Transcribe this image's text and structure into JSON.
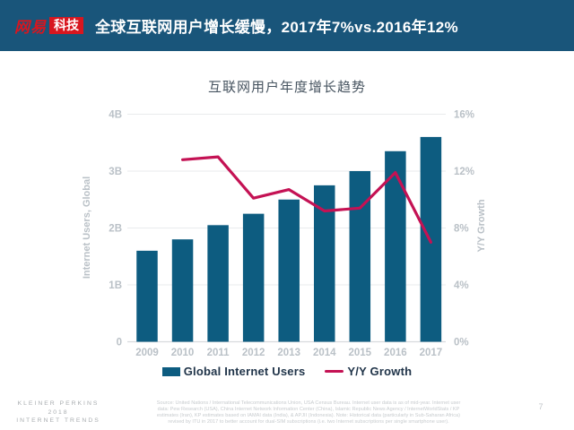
{
  "colors": {
    "header_bg": "#19557a",
    "logo_red": "#d8161f",
    "bar": "#0d5c80",
    "line": "#c41254",
    "grid": "#e9ebed",
    "axis": "#d7dadd",
    "tick_text": "#bac1c7"
  },
  "header": {
    "logo_wordmark": "网易",
    "logo_badge": "科技",
    "title": "全球互联网用户增长缓慢，2017年7%vs.2016年12%"
  },
  "chart_data": {
    "type": "bar",
    "title": "互联网用户年度增长趋势",
    "categories": [
      "2009",
      "2010",
      "2011",
      "2012",
      "2013",
      "2014",
      "2015",
      "2016",
      "2017"
    ],
    "series": [
      {
        "name": "Global Internet Users",
        "type": "bar",
        "axis": "left",
        "unit": "B",
        "color": "#0d5c80",
        "values": [
          1.6,
          1.8,
          2.05,
          2.25,
          2.5,
          2.75,
          3.0,
          3.35,
          3.6
        ]
      },
      {
        "name": "Y/Y Growth",
        "type": "line",
        "axis": "right",
        "unit": "%",
        "color": "#c41254",
        "values": [
          null,
          12.8,
          13.0,
          10.1,
          10.7,
          9.2,
          9.4,
          11.9,
          7.0
        ]
      }
    ],
    "left_axis": {
      "label": "Internet Users, Global",
      "min": 0,
      "max": 4,
      "ticks": [
        "0",
        "1B",
        "2B",
        "3B",
        "4B"
      ]
    },
    "right_axis": {
      "label": "Y/Y Growth",
      "min": 0,
      "max": 16,
      "ticks": [
        "0%",
        "4%",
        "8%",
        "12%",
        "16%"
      ]
    },
    "grid": true,
    "legend_position": "bottom"
  },
  "footer": {
    "source_lines": [
      "Source: United Nations / International Telecommunications Union, USA Census Bureau. Internet user data is as of mid-year. Internet user",
      "data: Pew Research (USA), China Internet Network Information Center (China), Islamic Republic News Agency / InternetWorldStats / KP",
      "estimates (Iran), KP estimates based on IAMAI data (India), & APJII (Indonesia). Note: Historical data (particularly in Sub-Saharan Africa)",
      "revised by ITU in 2017 to better account for dual-SIM subscriptions (i.e. two Internet subscriptions per single smartphone user)."
    ],
    "branding_lines": [
      "KLEINER PERKINS",
      "2018",
      "INTERNET TRENDS"
    ],
    "page_number": "7"
  }
}
